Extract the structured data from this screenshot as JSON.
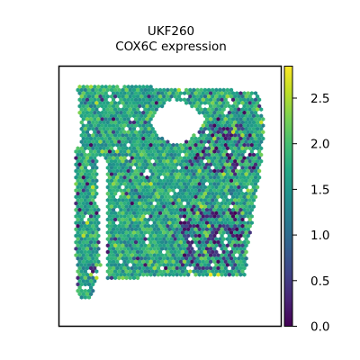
{
  "chart_data": {
    "type": "scatter",
    "title": "UKF260",
    "subtitle": "COX6C expression",
    "xlabel": "",
    "ylabel": "",
    "axes_ticks_visible": false,
    "grid": false,
    "marker": "hexagon",
    "colormap": "viridis",
    "colorbar": {
      "range": [
        0.0,
        2.85
      ],
      "ticks": [
        0.0,
        0.5,
        1.0,
        1.5,
        2.0,
        2.5
      ],
      "tick_labels": [
        "0.0",
        "0.5",
        "1.0",
        "1.5",
        "2.0",
        "2.5"
      ]
    },
    "value_distribution": {
      "typical_mean": 1.7,
      "typical_spread": 0.5,
      "min": 0.0,
      "max": 2.85
    },
    "tissue_outline_data_units": {
      "x_range": [
        0,
        100
      ],
      "y_range": [
        0,
        100
      ],
      "main_region_polygon": [
        [
          6,
          96
        ],
        [
          92,
          93
        ],
        [
          95,
          80
        ],
        [
          93,
          60
        ],
        [
          87,
          30
        ],
        [
          86,
          18
        ],
        [
          80,
          18
        ],
        [
          22,
          17
        ],
        [
          20,
          14
        ],
        [
          20,
          65
        ],
        [
          8,
          70
        ]
      ],
      "left_strip_polygon": [
        [
          5,
          70
        ],
        [
          15,
          70
        ],
        [
          17,
          22
        ],
        [
          13,
          10
        ],
        [
          9,
          8
        ],
        [
          6,
          12
        ],
        [
          5,
          30
        ]
      ],
      "hole_polygon": [
        [
          43,
          85
        ],
        [
          52,
          90
        ],
        [
          62,
          86
        ],
        [
          67,
          81
        ],
        [
          60,
          74
        ],
        [
          53,
          71
        ],
        [
          44,
          75
        ],
        [
          41,
          80
        ]
      ]
    },
    "low_expression_regions": [
      {
        "description": "right-upper tissue edge",
        "x_range": [
          62,
          90
        ],
        "y_range": [
          60,
          80
        ]
      },
      {
        "description": "lower right interior",
        "x_range": [
          55,
          85
        ],
        "y_range": [
          20,
          45
        ]
      }
    ]
  }
}
